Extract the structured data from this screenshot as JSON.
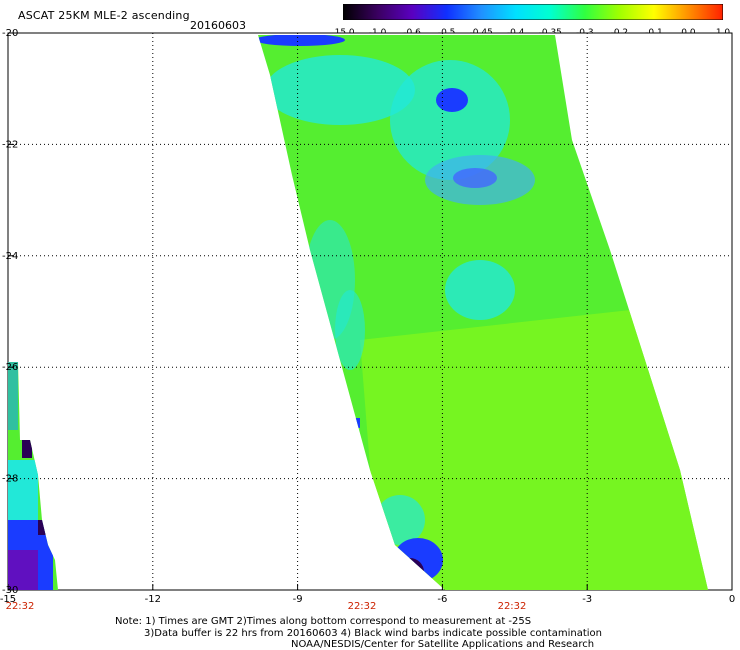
{
  "header": {
    "title": "ASCAT 25KM MLE-2 ascending",
    "date": "20160603"
  },
  "colorbar": {
    "labels": [
      "-15.0",
      "-1.0",
      "-0.6",
      "-0.5",
      "-0.45",
      "-0.4",
      "-0.35",
      "-0.3",
      "-0.2",
      "-0.1",
      "0.0",
      "1.0"
    ],
    "colors": [
      "#000000",
      "#3a0060",
      "#5a00c0",
      "#1030ff",
      "#2090ff",
      "#00e0ff",
      "#00ffd0",
      "#30ff40",
      "#a0ff00",
      "#ffff00",
      "#ff9000",
      "#ff2000"
    ]
  },
  "map": {
    "x_ticks": [
      "-15",
      "-12",
      "-9",
      "-6",
      "-3",
      "0"
    ],
    "y_ticks": [
      "-20",
      "-22",
      "-24",
      "-26",
      "-28",
      "-30"
    ],
    "time_labels": [
      "22:32",
      "22:32",
      "22:32"
    ],
    "time_label_color": "#cc2200",
    "grid": true,
    "legend_colors": {
      "swath_main": "#55ee30",
      "swath_light": "#7cf61e",
      "cyan_patch": "#22e8d8",
      "blue_patch": "#1a3cff",
      "dark_patch": "#2a0055"
    }
  },
  "notes": {
    "line1": "Note: 1) Times are GMT 2)Times along bottom correspond to measurement at -25S",
    "line2": "3)Data buffer is 22 hrs from 20160603 4) Black wind barbs indicate possible contamination",
    "line3": "NOAA/NESDIS/Center for Satellite Applications and Research"
  }
}
